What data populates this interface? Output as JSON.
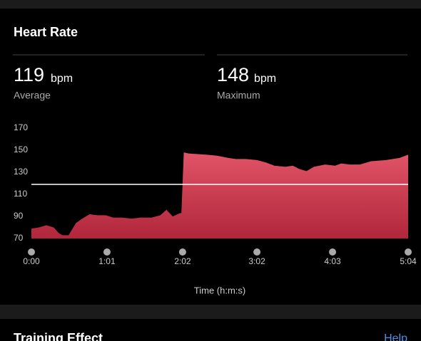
{
  "header": {
    "title": "Heart Rate"
  },
  "stats": [
    {
      "value": 119,
      "unit": "bpm",
      "label": "Average"
    },
    {
      "value": 148,
      "unit": "bpm",
      "label": "Maximum"
    }
  ],
  "chart_data": {
    "type": "area",
    "color": "#d9445a",
    "x_label": "Time (h:m:s)",
    "x": [
      0,
      6,
      12,
      18,
      22,
      25,
      30,
      36,
      41,
      47,
      53,
      60,
      66,
      73,
      81,
      88,
      97,
      104,
      109,
      114,
      120,
      121,
      123,
      127,
      141,
      150,
      159,
      165,
      173,
      182,
      189,
      196,
      205,
      211,
      216,
      222,
      228,
      237,
      245,
      250,
      257,
      265,
      274,
      286,
      297,
      304
    ],
    "values": [
      79,
      80,
      82,
      80,
      75,
      73,
      73,
      84,
      88,
      92,
      91,
      91,
      89,
      89,
      88,
      89,
      89,
      91,
      96,
      90,
      93,
      93,
      148,
      147,
      146,
      145,
      143,
      142,
      142,
      141,
      139,
      136,
      135,
      136,
      133,
      131,
      135,
      137,
      136,
      138,
      137,
      137,
      140,
      141,
      143,
      146
    ],
    "xlim": [
      0,
      304
    ],
    "xticks": [
      {
        "value": 0,
        "label": "0:00"
      },
      {
        "value": 61,
        "label": "1:01"
      },
      {
        "value": 122,
        "label": "2:02"
      },
      {
        "value": 182,
        "label": "3:02"
      },
      {
        "value": 243,
        "label": "4:03"
      },
      {
        "value": 304,
        "label": "5:04"
      }
    ],
    "ylim": [
      70,
      170
    ],
    "yticks": [
      70,
      90,
      110,
      130,
      150,
      170
    ]
  },
  "next_section": {
    "title": "Training Effect",
    "link": "Help"
  }
}
